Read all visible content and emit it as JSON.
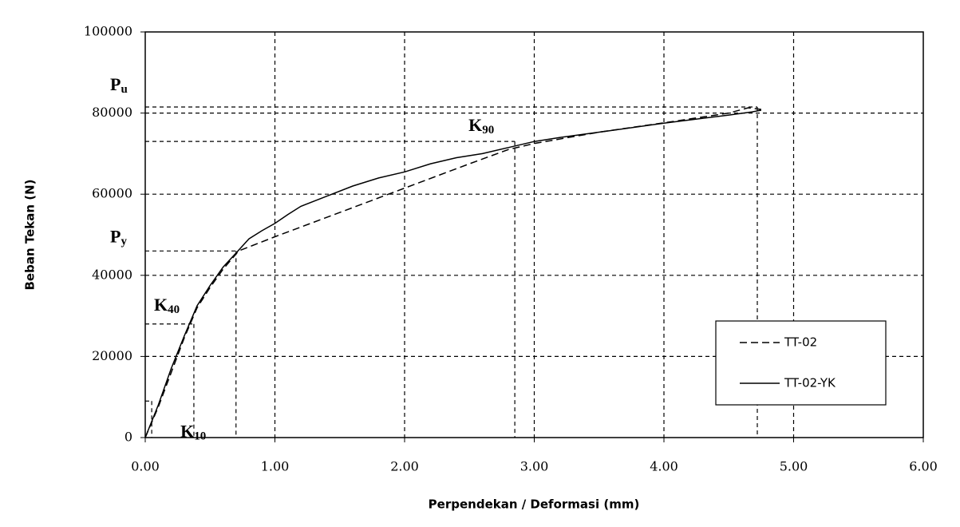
{
  "chart_data": {
    "type": "line",
    "x_label": "Perpendekan / Deformasi (mm)",
    "y_label": "Beban Tekan (N)",
    "xlim": [
      0,
      6
    ],
    "ylim": [
      0,
      100000
    ],
    "xticks": [
      {
        "value": 0,
        "label": "0.00"
      },
      {
        "value": 1,
        "label": "1.00"
      },
      {
        "value": 2,
        "label": "2.00"
      },
      {
        "value": 3,
        "label": "3.00"
      },
      {
        "value": 4,
        "label": "4.00"
      },
      {
        "value": 5,
        "label": "5.00"
      },
      {
        "value": 6,
        "label": "6.00"
      }
    ],
    "yticks": [
      0,
      20000,
      40000,
      60000,
      80000,
      100000
    ],
    "grid": true,
    "legend": "lower right",
    "series": [
      {
        "name": "TT-02",
        "color": "#000000",
        "line_style": "dashed",
        "x": [
          0,
          0.1,
          0.2,
          0.3,
          0.4,
          0.5,
          0.6,
          0.72,
          1.0,
          1.5,
          2.0,
          2.5,
          2.8,
          3.0,
          3.5,
          4.0,
          4.5,
          4.65,
          4.75
        ],
        "values": [
          0,
          7500,
          16000,
          24500,
          32000,
          37000,
          41500,
          46000,
          49500,
          55500,
          61500,
          67500,
          71000,
          72500,
          75300,
          77600,
          80000,
          81300,
          80900
        ]
      },
      {
        "name": "TT-02-YK",
        "color": "#000000",
        "line_style": "solid",
        "x": [
          0,
          0.1,
          0.2,
          0.3,
          0.4,
          0.5,
          0.6,
          0.7,
          0.8,
          0.9,
          1.0,
          1.1,
          1.2,
          1.4,
          1.6,
          1.8,
          2.0,
          2.2,
          2.4,
          2.6,
          2.8,
          3.0,
          3.2,
          3.5,
          4.0,
          4.5,
          4.68,
          4.75
        ],
        "values": [
          0,
          8000,
          17000,
          25000,
          32500,
          37500,
          42000,
          45500,
          49000,
          51000,
          52800,
          55000,
          57000,
          59500,
          62000,
          64000,
          65500,
          67500,
          69000,
          70000,
          71500,
          73000,
          74000,
          75300,
          77500,
          79500,
          80300,
          80700
        ]
      }
    ],
    "guides": [
      {
        "x": 4.72,
        "y": 81500,
        "label": "P",
        "sub": "u"
      },
      {
        "x": 2.85,
        "y": 73000,
        "label": "K",
        "sub": "90"
      },
      {
        "x": 0.7,
        "y": 46000,
        "label": "P",
        "sub": "y"
      },
      {
        "x": 0.375,
        "y": 28000,
        "label": "K",
        "sub": "40"
      },
      {
        "x": 0.05,
        "y": 9000,
        "label": "K",
        "sub": "10"
      }
    ]
  }
}
